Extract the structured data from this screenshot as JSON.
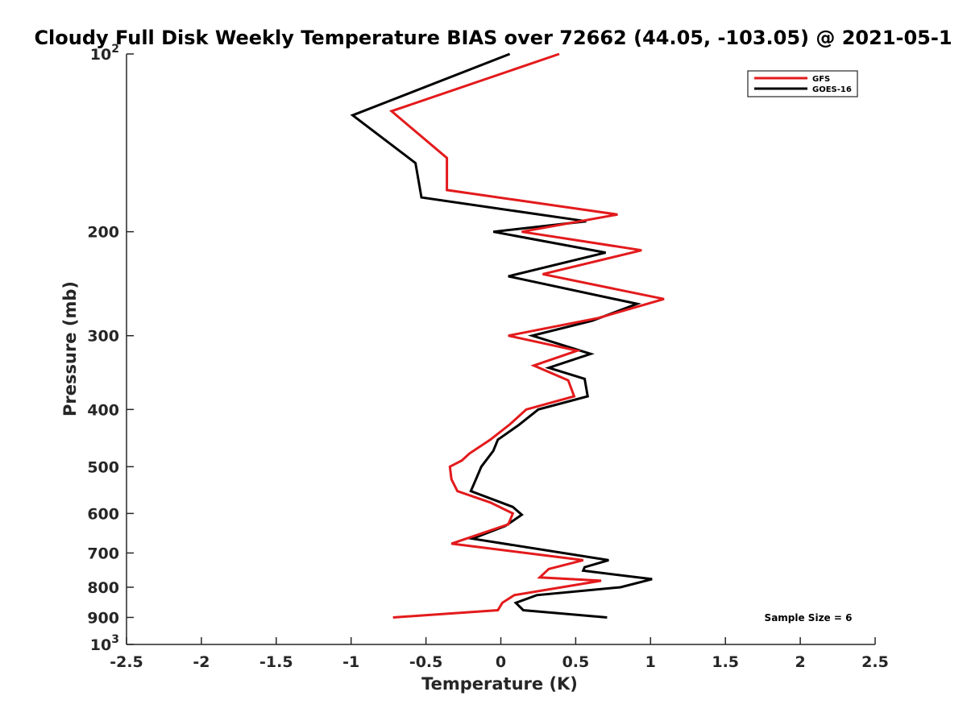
{
  "chart_data": {
    "type": "line",
    "title": "Cloudy Full Disk Weekly Temperature BIAS over 72662 (44.05, -103.05) @ 2021-05-1",
    "xlabel": "Temperature (K)",
    "ylabel": "Pressure (mb)",
    "xlim": [
      -2.5,
      2.5
    ],
    "ylim": [
      100,
      1000
    ],
    "y_scale": "log",
    "y_reversed": true,
    "x_ticks": [
      "-2.5",
      "-2",
      "-1.5",
      "-1",
      "-0.5",
      "0",
      "0.5",
      "1",
      "1.5",
      "2",
      "2.5"
    ],
    "y_tick_values": [
      100,
      200,
      300,
      400,
      500,
      600,
      700,
      800,
      900,
      1000
    ],
    "y_ticks": [
      {
        "base": "10",
        "exp": "2"
      },
      {
        "base": "200",
        "exp": ""
      },
      {
        "base": "300",
        "exp": ""
      },
      {
        "base": "400",
        "exp": ""
      },
      {
        "base": "500",
        "exp": ""
      },
      {
        "base": "600",
        "exp": ""
      },
      {
        "base": "700",
        "exp": ""
      },
      {
        "base": "800",
        "exp": ""
      },
      {
        "base": "900",
        "exp": ""
      },
      {
        "base": "10",
        "exp": "3"
      }
    ],
    "legend_position": "top-right",
    "grid": false,
    "annotation": "Sample Size = 6",
    "series": [
      {
        "name": "GFS",
        "color": "#e31a1c",
        "points": [
          [
            0.39,
            100
          ],
          [
            -0.73,
            125
          ],
          [
            -0.36,
            150
          ],
          [
            -0.36,
            170
          ],
          [
            0.78,
            187
          ],
          [
            0.14,
            200
          ],
          [
            0.94,
            215
          ],
          [
            0.28,
            236
          ],
          [
            1.09,
            260
          ],
          [
            0.65,
            280
          ],
          [
            0.05,
            300
          ],
          [
            0.51,
            318
          ],
          [
            0.22,
            337
          ],
          [
            0.45,
            357
          ],
          [
            0.49,
            380
          ],
          [
            0.17,
            400
          ],
          [
            0.06,
            424
          ],
          [
            -0.07,
            450
          ],
          [
            -0.21,
            475
          ],
          [
            -0.26,
            488
          ],
          [
            -0.34,
            500
          ],
          [
            -0.33,
            525
          ],
          [
            -0.29,
            550
          ],
          [
            -0.07,
            575
          ],
          [
            0.08,
            600
          ],
          [
            0.05,
            626
          ],
          [
            -0.14,
            650
          ],
          [
            -0.33,
            675
          ],
          [
            0.55,
            720
          ],
          [
            0.32,
            745
          ],
          [
            0.26,
            770
          ],
          [
            0.67,
            780
          ],
          [
            0.09,
            825
          ],
          [
            0.01,
            850
          ],
          [
            -0.02,
            875
          ],
          [
            -0.72,
            900
          ]
        ]
      },
      {
        "name": "GOES-16",
        "color": "#000000",
        "points": [
          [
            0.06,
            100
          ],
          [
            -0.99,
            127
          ],
          [
            -0.57,
            153
          ],
          [
            -0.53,
            175
          ],
          [
            0.57,
            192
          ],
          [
            -0.05,
            200
          ],
          [
            0.7,
            217
          ],
          [
            0.05,
            238
          ],
          [
            0.91,
            265
          ],
          [
            0.61,
            283
          ],
          [
            0.21,
            300
          ],
          [
            0.6,
            322
          ],
          [
            0.32,
            340
          ],
          [
            0.56,
            355
          ],
          [
            0.58,
            380
          ],
          [
            0.25,
            400
          ],
          [
            0.12,
            425
          ],
          [
            -0.02,
            450
          ],
          [
            -0.05,
            470
          ],
          [
            -0.13,
            500
          ],
          [
            -0.17,
            528
          ],
          [
            -0.2,
            550
          ],
          [
            0.08,
            585
          ],
          [
            0.14,
            603
          ],
          [
            0.03,
            630
          ],
          [
            -0.19,
            662
          ],
          [
            0.72,
            720
          ],
          [
            0.56,
            740
          ],
          [
            0.55,
            750
          ],
          [
            1.01,
            775
          ],
          [
            0.8,
            800
          ],
          [
            0.24,
            825
          ],
          [
            0.1,
            850
          ],
          [
            0.15,
            875
          ],
          [
            0.71,
            900
          ]
        ]
      }
    ]
  }
}
